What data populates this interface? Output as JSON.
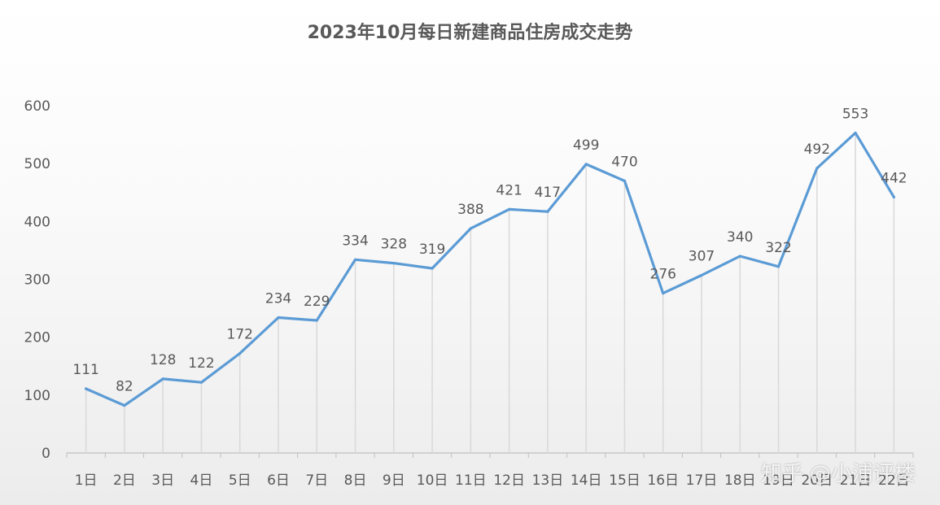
{
  "chart_data": {
    "type": "line",
    "title": "2023年10月每日新建商品住房成交走势",
    "categories": [
      "1日",
      "2日",
      "3日",
      "4日",
      "5日",
      "6日",
      "7日",
      "8日",
      "9日",
      "10日",
      "11日",
      "12日",
      "13日",
      "14日",
      "15日",
      "16日",
      "17日",
      "18日",
      "19日",
      "20日",
      "21日",
      "22日"
    ],
    "values": [
      111,
      82,
      128,
      122,
      172,
      234,
      229,
      334,
      328,
      319,
      388,
      421,
      417,
      499,
      470,
      276,
      307,
      340,
      322,
      492,
      553,
      442
    ],
    "y_ticks": [
      "0",
      "100",
      "200",
      "300",
      "400",
      "500",
      "600"
    ],
    "ylim": [
      0,
      600
    ],
    "xlabel": "",
    "ylabel": "",
    "grid": false,
    "data_labels": true,
    "colors": {
      "line": "#5b9bd5",
      "drop_line": "#d9d9d9",
      "axis": "#bfbfbf",
      "text": "#595959"
    }
  },
  "watermark": "知乎 @小浦评楼"
}
